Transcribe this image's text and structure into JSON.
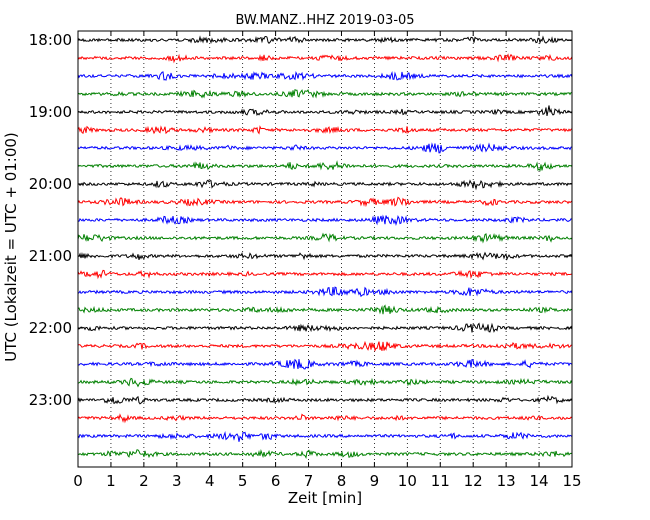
{
  "chart_data": {
    "type": "line",
    "title": "BW.MANZ..HHZ 2019-03-05",
    "xlabel": "Zeit  [min]",
    "ylabel": "UTC (Lokalzeit = UTC + 01:00)",
    "xlim": [
      0,
      15
    ],
    "x_ticks": [
      "0",
      "1",
      "2",
      "3",
      "4",
      "5",
      "6",
      "7",
      "8",
      "9",
      "10",
      "11",
      "12",
      "13",
      "14",
      "15"
    ],
    "y_tick_labels": [
      "18:00",
      "19:00",
      "20:00",
      "21:00",
      "22:00",
      "23:00"
    ],
    "trace_start": "18:00",
    "trace_interval_min": 15,
    "trace_count": 24,
    "trace_colors": [
      "#000000",
      "#ff0000",
      "#0000ff",
      "#008000"
    ],
    "grid": "vertical dotted at each minute",
    "legend": "none"
  }
}
